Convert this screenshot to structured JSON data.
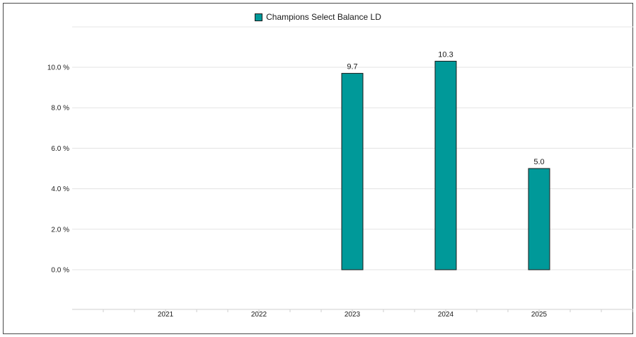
{
  "chart_data": {
    "type": "bar",
    "categories": [
      "2021",
      "2022",
      "2023",
      "2024",
      "2025"
    ],
    "series": [
      {
        "name": "Champions Select Balance LD",
        "values": [
          null,
          null,
          9.7,
          10.3,
          5.0
        ],
        "data_labels": [
          "",
          "",
          "9.7",
          "10.3",
          "5.0"
        ]
      }
    ],
    "y_ticks": [
      "0.0 %",
      "2.0 %",
      "4.0 %",
      "6.0 %",
      "8.0 %",
      "10.0 %"
    ],
    "y_tick_values": [
      0,
      2,
      4,
      6,
      8,
      10
    ],
    "ylim": [
      -2,
      12
    ],
    "grid": true,
    "legend": "top-center",
    "bar_color": "#009999"
  }
}
